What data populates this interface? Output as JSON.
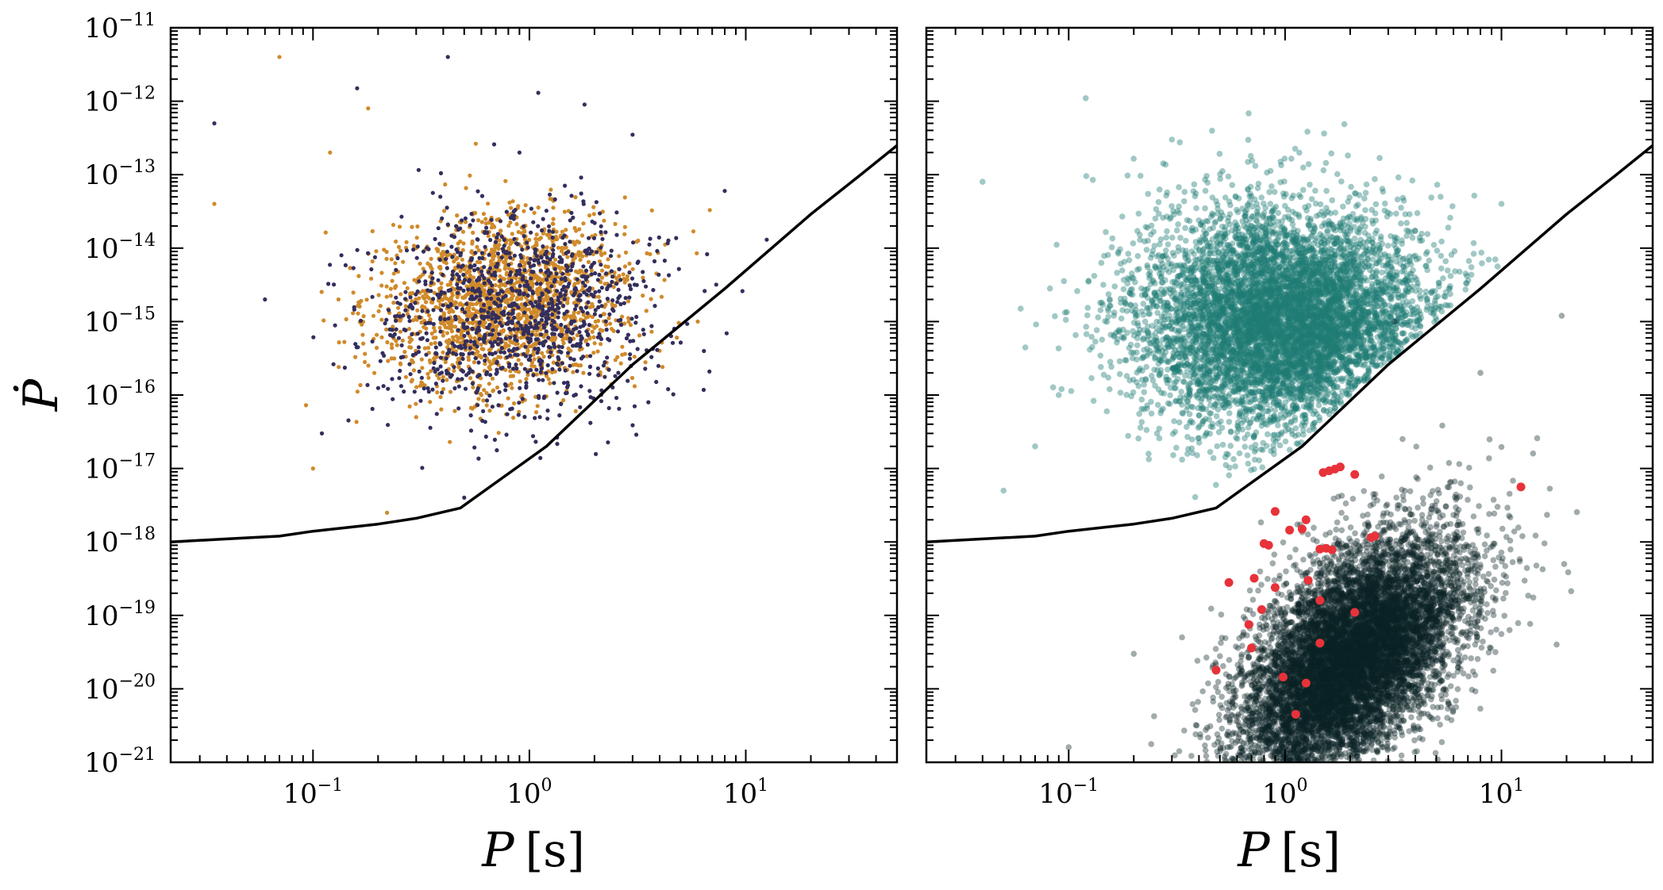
{
  "colors": {
    "left_series_1": "#d08a2a",
    "left_series_2": "#332e5c",
    "right_above": "#1e7b74",
    "right_below": "#0b2224",
    "highlight": "#e8323a",
    "line": "#000000"
  },
  "chart_data": [
    {
      "type": "scatter",
      "panel": "left",
      "xscale": "log",
      "yscale": "log",
      "xlim": [
        0.022,
        50
      ],
      "ylim": [
        1e-21,
        1e-11
      ],
      "xlabel": "P",
      "xunit": "[s]",
      "ylabel": "Ṗ",
      "x_ticks": [
        {
          "base": "10",
          "exp": "−1"
        },
        {
          "base": "10",
          "exp": "0"
        },
        {
          "base": "10",
          "exp": "1"
        }
      ],
      "y_ticks": [
        {
          "base": "10",
          "exp": "−21"
        },
        {
          "base": "10",
          "exp": "−20"
        },
        {
          "base": "10",
          "exp": "−19"
        },
        {
          "base": "10",
          "exp": "−18"
        },
        {
          "base": "10",
          "exp": "−17"
        },
        {
          "base": "10",
          "exp": "−16"
        },
        {
          "base": "10",
          "exp": "−15"
        },
        {
          "base": "10",
          "exp": "−14"
        },
        {
          "base": "10",
          "exp": "−13"
        },
        {
          "base": "10",
          "exp": "−12"
        },
        {
          "base": "10",
          "exp": "−11"
        }
      ],
      "series": [
        {
          "color_key": "left_series_1",
          "points": [
            [
              0.035,
              4e-14
            ],
            [
              0.07,
              4e-12
            ],
            [
              0.12,
              2e-13
            ],
            [
              0.18,
              8e-13
            ],
            [
              0.3,
              1e-14
            ],
            [
              0.45,
              5e-15
            ],
            [
              0.7,
              2e-15
            ],
            [
              1.0,
              1e-15
            ],
            [
              1.5,
              6e-16
            ],
            [
              2.5,
              3e-16
            ],
            [
              0.6,
              1e-16
            ],
            [
              0.3,
              5e-17
            ],
            [
              0.22,
              2.5e-18
            ],
            [
              0.1,
              1e-17
            ],
            [
              4.0,
              4e-16
            ],
            [
              6.0,
              1e-15
            ]
          ],
          "cloud": {
            "n": 1800,
            "mu": [
              -0.12,
              -14.75
            ],
            "sd": [
              0.28,
              0.6
            ],
            "rho": 0.15
          }
        },
        {
          "color_key": "left_series_2",
          "points": [
            [
              0.42,
              4e-12
            ],
            [
              1.1,
              1.3e-12
            ],
            [
              0.16,
              1.5e-12
            ],
            [
              12.5,
              1.3e-14
            ],
            [
              8.0,
              6e-14
            ],
            [
              3.0,
              3.5e-13
            ],
            [
              0.035,
              5e-13
            ],
            [
              0.06,
              2e-15
            ],
            [
              0.11,
              3e-17
            ],
            [
              0.5,
              4e-18
            ],
            [
              1.8,
              9e-13
            ],
            [
              0.9,
              2e-13
            ]
          ],
          "cloud": {
            "n": 1100,
            "mu": [
              -0.05,
              -14.9
            ],
            "sd": [
              0.32,
              0.7
            ],
            "rho": 0.1
          }
        }
      ],
      "line": {
        "color_key": "line",
        "points": [
          [
            0.022,
            1e-18
          ],
          [
            0.04,
            1.1e-18
          ],
          [
            0.07,
            1.2e-18
          ],
          [
            0.1,
            1.4e-18
          ],
          [
            0.2,
            1.75e-18
          ],
          [
            0.3,
            2.1e-18
          ],
          [
            0.48,
            2.9e-18
          ],
          [
            1.2,
            2e-17
          ],
          [
            3.0,
            2.6e-16
          ],
          [
            8.0,
            2.8e-15
          ],
          [
            20.0,
            2.9e-14
          ],
          [
            34.0,
            1e-13
          ],
          [
            50.0,
            2.5e-13
          ]
        ]
      }
    },
    {
      "type": "scatter",
      "panel": "right",
      "xscale": "log",
      "yscale": "log",
      "xlim": [
        0.022,
        50
      ],
      "ylim": [
        1e-21,
        1e-11
      ],
      "xlabel": "P",
      "xunit": "[s]",
      "x_ticks": [
        {
          "base": "10",
          "exp": "−1"
        },
        {
          "base": "10",
          "exp": "0"
        },
        {
          "base": "10",
          "exp": "1"
        }
      ],
      "series": [
        {
          "color_key": "right_above",
          "clip": "above_line",
          "points": [
            [
              0.12,
              1.1e-12
            ],
            [
              0.3,
              3e-13
            ],
            [
              0.04,
              8e-14
            ],
            [
              0.06,
              1.5e-15
            ],
            [
              0.05,
              5e-18
            ],
            [
              0.15,
              6e-17
            ],
            [
              0.09,
              1e-16
            ],
            [
              10.0,
              4e-14
            ],
            [
              0.07,
              2e-17
            ]
          ],
          "cloud": {
            "n": 7000,
            "mu": [
              0.0,
              -15.0
            ],
            "sd": [
              0.33,
              0.75
            ],
            "rho": 0.0
          }
        },
        {
          "color_key": "right_below",
          "clip": "below_line",
          "points": [
            [
              19.0,
              1.2e-15
            ],
            [
              19.5,
              5e-19
            ],
            [
              18.0,
              4e-20
            ],
            [
              14.0,
              1.6e-17
            ],
            [
              12.5,
              1.2e-18
            ],
            [
              0.1,
              1.6e-21
            ],
            [
              0.2,
              3e-20
            ],
            [
              8.0,
              2e-16
            ],
            [
              3.2,
              1e-15
            ]
          ],
          "cloud": {
            "n": 9000,
            "mu": [
              0.3,
              -19.6
            ],
            "sd": [
              0.26,
              0.85
            ],
            "rho": 0.55
          }
        }
      ],
      "highlight_points": [
        [
          12.3,
          5.6e-18
        ],
        [
          1.5,
          8.8e-18
        ],
        [
          1.6,
          9.3e-18
        ],
        [
          1.7,
          9.8e-18
        ],
        [
          1.8,
          1.05e-17
        ],
        [
          2.1,
          8.3e-18
        ],
        [
          0.9,
          2.6e-18
        ],
        [
          1.25,
          2e-18
        ],
        [
          1.05,
          1.45e-18
        ],
        [
          1.2,
          1.5e-18
        ],
        [
          0.8,
          9.5e-19
        ],
        [
          0.84,
          9e-19
        ],
        [
          1.45,
          8e-19
        ],
        [
          1.55,
          8.2e-19
        ],
        [
          1.65,
          7.8e-19
        ],
        [
          2.5,
          1.15e-18
        ],
        [
          2.6,
          1.2e-18
        ],
        [
          0.55,
          2.8e-19
        ],
        [
          0.72,
          3.2e-19
        ],
        [
          0.9,
          2.4e-19
        ],
        [
          1.28,
          3e-19
        ],
        [
          1.45,
          1.6e-19
        ],
        [
          2.1,
          1.1e-19
        ],
        [
          0.78,
          1.2e-19
        ],
        [
          0.68,
          7.5e-20
        ],
        [
          0.7,
          3.6e-20
        ],
        [
          1.45,
          4.2e-20
        ],
        [
          0.48,
          1.8e-20
        ],
        [
          0.98,
          1.45e-20
        ],
        [
          1.25,
          1.2e-20
        ],
        [
          1.12,
          4.5e-21
        ]
      ],
      "line": {
        "color_key": "line",
        "points": [
          [
            0.022,
            1e-18
          ],
          [
            0.04,
            1.1e-18
          ],
          [
            0.07,
            1.2e-18
          ],
          [
            0.1,
            1.4e-18
          ],
          [
            0.2,
            1.75e-18
          ],
          [
            0.3,
            2.1e-18
          ],
          [
            0.48,
            2.9e-18
          ],
          [
            1.2,
            2e-17
          ],
          [
            3.0,
            2.6e-16
          ],
          [
            8.0,
            2.8e-15
          ],
          [
            20.0,
            2.9e-14
          ],
          [
            34.0,
            1e-13
          ],
          [
            50.0,
            2.5e-13
          ]
        ]
      }
    }
  ]
}
